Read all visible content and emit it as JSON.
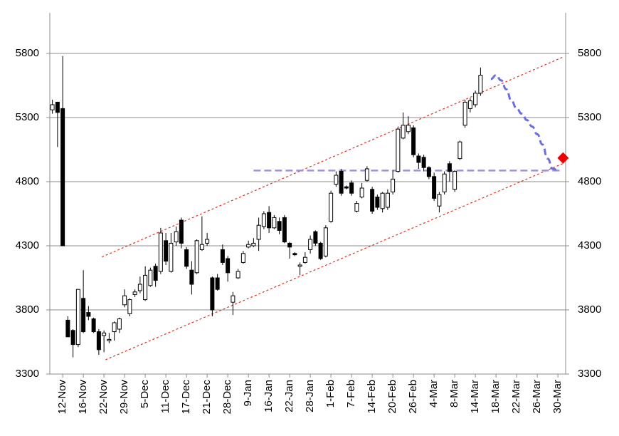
{
  "chart_data": {
    "type": "candlestick",
    "categories": [
      null,
      null,
      "12-Nov",
      null,
      null,
      null,
      "16-Nov",
      null,
      null,
      null,
      "22-Nov",
      null,
      null,
      null,
      "29-Nov",
      null,
      null,
      null,
      "5-Dec",
      null,
      null,
      null,
      "11-Dec",
      null,
      null,
      null,
      "17-Dec",
      null,
      null,
      null,
      "21-Dec",
      null,
      null,
      null,
      "28-Dec",
      null,
      null,
      null,
      "9-Jan",
      null,
      null,
      null,
      "16-Jan",
      null,
      null,
      null,
      "22-Jan",
      null,
      null,
      null,
      "28-Jan",
      null,
      null,
      null,
      "1-Feb",
      null,
      null,
      null,
      "7-Feb",
      null,
      null,
      null,
      "14-Feb",
      null,
      null,
      null,
      "20-Feb",
      null,
      null,
      null,
      "26-Feb",
      null,
      null,
      null,
      "4-Mar",
      null,
      null,
      null,
      "8-Mar",
      null,
      null,
      null,
      "14-Mar",
      null,
      null,
      null,
      "18-Mar",
      null,
      null,
      null,
      "22-Mar",
      null,
      null,
      null,
      "26-Mar",
      null,
      null,
      null,
      "30-Mar",
      null
    ],
    "open": [
      5360,
      5420,
      5370,
      3720,
      3640,
      3530,
      3890,
      3780,
      3730,
      3630,
      3600,
      3560,
      3630,
      3650,
      3840,
      3770,
      3920,
      3950,
      3880,
      3990,
      4140,
      4100,
      4340,
      4100,
      4330,
      4500,
      4270,
      4110,
      4090,
      4270,
      4320,
      4050,
      4050,
      4270,
      4200,
      3860,
      4050,
      4170,
      4290,
      4300,
      4350,
      4450,
      4560,
      4440,
      4490,
      4520,
      4320,
      4240,
      4140,
      4170,
      4270,
      4410,
      4320,
      4220,
      4490,
      4780,
      4880,
      4760,
      4790,
      4570,
      4680,
      4810,
      4740,
      4680,
      4590,
      4600,
      4720,
      4880,
      5140,
      5190,
      5220,
      5000,
      4990,
      4910,
      4840,
      4610,
      4720,
      4940,
      4740,
      4980,
      5240,
      5370,
      5400,
      5490,
      null,
      null,
      null,
      null,
      null,
      null,
      null,
      null,
      null,
      null,
      null,
      null,
      null,
      null,
      null,
      null
    ],
    "high": [
      5440,
      5420,
      5780,
      3750,
      3650,
      3960,
      4110,
      3830,
      3740,
      3650,
      3640,
      3620,
      3710,
      3740,
      3960,
      3890,
      3960,
      4060,
      4140,
      4130,
      4160,
      4440,
      4400,
      4400,
      4450,
      4520,
      4290,
      4180,
      4350,
      4530,
      4400,
      4060,
      4080,
      4310,
      4220,
      3940,
      4120,
      4260,
      4340,
      4360,
      4520,
      4570,
      4610,
      4540,
      4520,
      4540,
      4330,
      4250,
      4170,
      4250,
      4380,
      4420,
      4330,
      4460,
      4730,
      4880,
      4900,
      4770,
      4810,
      4650,
      4790,
      4920,
      4760,
      4700,
      4720,
      4740,
      4890,
      5230,
      5340,
      5310,
      5240,
      5020,
      5010,
      4920,
      4870,
      4720,
      4880,
      4960,
      4890,
      5120,
      5440,
      5450,
      5510,
      5690,
      null,
      null,
      null,
      null,
      null,
      null,
      null,
      null,
      null,
      null,
      null,
      null,
      null,
      null,
      null,
      null
    ],
    "low": [
      5330,
      5070,
      4300,
      3590,
      3430,
      3510,
      3620,
      3720,
      3620,
      3450,
      3470,
      3540,
      3560,
      3620,
      3820,
      3750,
      3900,
      3930,
      3870,
      3980,
      3980,
      4080,
      4150,
      4090,
      4300,
      4280,
      4120,
      3920,
      4080,
      4260,
      4300,
      3750,
      3950,
      4150,
      4020,
      3760,
      4040,
      4160,
      4280,
      4290,
      4260,
      4430,
      4400,
      4430,
      4390,
      4320,
      4200,
      4220,
      4070,
      4160,
      4240,
      4300,
      4190,
      4210,
      4480,
      4760,
      4690,
      4740,
      4690,
      4560,
      4670,
      4800,
      4550,
      4580,
      4560,
      4580,
      4700,
      4870,
      5130,
      5170,
      4990,
      4900,
      4880,
      4820,
      4650,
      4560,
      4700,
      4800,
      4720,
      4970,
      5220,
      5340,
      5380,
      5470,
      null,
      null,
      null,
      null,
      null,
      null,
      null,
      null,
      null,
      null,
      null,
      null,
      null,
      null,
      null,
      null
    ],
    "close": [
      5400,
      5340,
      4300,
      3590,
      3530,
      3960,
      3630,
      3750,
      3630,
      3490,
      3620,
      3570,
      3700,
      3730,
      3910,
      3880,
      3940,
      4000,
      4070,
      4110,
      4030,
      4400,
      4180,
      4320,
      4410,
      4320,
      4140,
      4000,
      4340,
      4310,
      4350,
      3800,
      3960,
      4170,
      4090,
      3910,
      4100,
      4240,
      4310,
      4320,
      4460,
      4550,
      4440,
      4520,
      4420,
      4330,
      4290,
      4230,
      4150,
      4210,
      4350,
      4320,
      4200,
      4440,
      4710,
      4850,
      4710,
      4750,
      4710,
      4630,
      4750,
      4900,
      4570,
      4600,
      4710,
      4710,
      4820,
      5210,
      5240,
      5240,
      5010,
      4950,
      4910,
      4840,
      4670,
      4700,
      4860,
      4880,
      4880,
      5110,
      5420,
      5430,
      5490,
      5630,
      null,
      null,
      null,
      null,
      null,
      null,
      null,
      null,
      null,
      null,
      null,
      null,
      null,
      null,
      null,
      null
    ],
    "candle_color": "#000000",
    "forecast": {
      "color": "#6b6fe0",
      "values": [
        null,
        null,
        null,
        null,
        null,
        null,
        null,
        null,
        null,
        null,
        null,
        null,
        null,
        null,
        null,
        null,
        null,
        null,
        null,
        null,
        null,
        null,
        null,
        null,
        null,
        null,
        null,
        null,
        null,
        null,
        null,
        null,
        null,
        null,
        null,
        null,
        null,
        null,
        null,
        null,
        null,
        null,
        null,
        null,
        null,
        null,
        null,
        null,
        null,
        null,
        null,
        null,
        null,
        null,
        null,
        null,
        null,
        null,
        null,
        null,
        null,
        null,
        null,
        null,
        null,
        null,
        null,
        null,
        null,
        null,
        null,
        null,
        null,
        null,
        null,
        null,
        null,
        null,
        null,
        null,
        null,
        null,
        null,
        null,
        null,
        5600,
        5630,
        5590,
        5520,
        5430,
        5370,
        5330,
        5280,
        5230,
        5170,
        5090,
        4980,
        4900,
        4890,
        null
      ]
    },
    "target": {
      "color": "#ee0000",
      "x": 99,
      "value": 4985
    },
    "support": {
      "color": "#a090d8",
      "x": [
        39,
        99
      ],
      "values": [
        4887,
        4887
      ]
    },
    "channel_upper": {
      "color": "#e03020",
      "x": [
        9.6,
        99
      ],
      "values": [
        4213,
        5772
      ]
    },
    "channel_lower": {
      "color": "#e03020",
      "x": [
        10.3,
        99
      ],
      "values": [
        3411,
        4942
      ]
    },
    "ylim": [
      3300,
      6100
    ],
    "yticks": [
      3300,
      3800,
      4300,
      4800,
      5300,
      5800
    ],
    "grid": true
  }
}
